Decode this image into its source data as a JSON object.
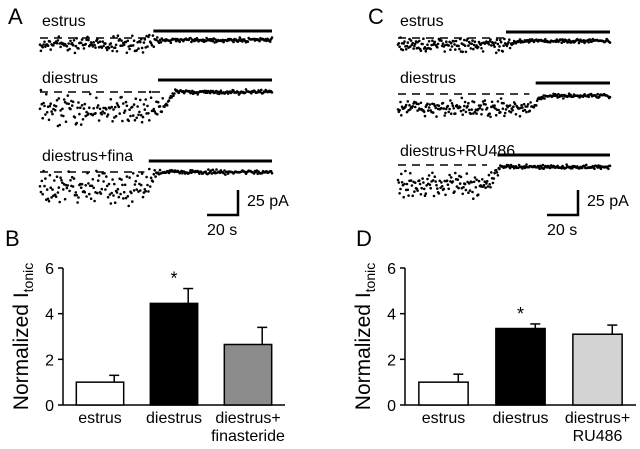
{
  "traces": [
    {
      "panel": "A",
      "items": [
        "estrus",
        "diestrus",
        "diestrus+fina"
      ],
      "scale_y": "25 pA",
      "scale_x": "20 s"
    },
    {
      "panel": "C",
      "items": [
        "estrus",
        "diestrus",
        "diestrus+RU486"
      ],
      "scale_y": "25 pA",
      "scale_x": "20 s"
    }
  ],
  "chart_data": [
    {
      "type": "bar",
      "panel": "B",
      "ylabel": "Normalized I",
      "ylabel_sub": "tonic",
      "categories": [
        "estrus",
        "diestrus",
        "diestrus+ finasteride"
      ],
      "values": [
        1.0,
        4.45,
        2.65
      ],
      "errors": [
        0.3,
        0.65,
        0.75
      ],
      "colors": [
        "#ffffff",
        "#000000",
        "#8c8c8c"
      ],
      "annotations": [
        null,
        "*",
        null
      ],
      "ylim": [
        0,
        6
      ],
      "yticks": [
        0,
        2,
        4,
        6
      ]
    },
    {
      "type": "bar",
      "panel": "D",
      "ylabel": "Normalized I",
      "ylabel_sub": "tonic",
      "categories": [
        "estrus",
        "diestrus",
        "diestrus+ RU486"
      ],
      "values": [
        1.0,
        3.35,
        3.1
      ],
      "errors": [
        0.35,
        0.2,
        0.4
      ],
      "colors": [
        "#ffffff",
        "#000000",
        "#d3d3d3"
      ],
      "annotations": [
        null,
        "*",
        null
      ],
      "ylim": [
        0,
        6
      ],
      "yticks": [
        0,
        2,
        4,
        6
      ]
    }
  ]
}
